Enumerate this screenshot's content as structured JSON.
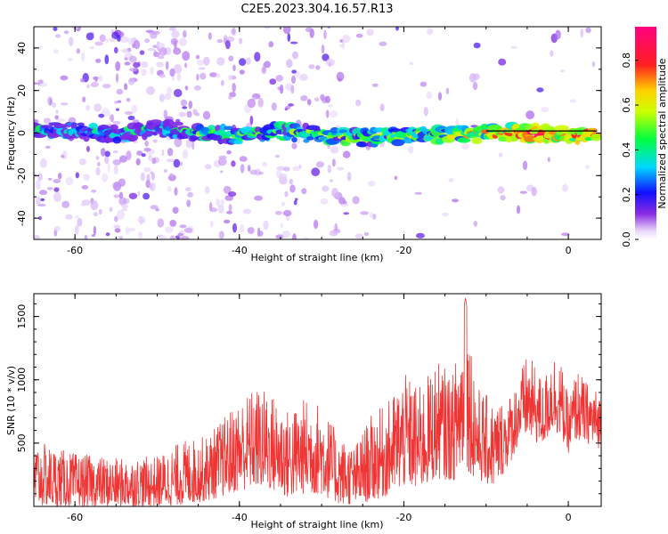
{
  "title": "C2E5.2023.304.16.57.R13",
  "colors": {
    "snr_line": "#ef3434",
    "track_line": "#000000",
    "scatter_low": "#c9a8f5",
    "scatter_high": "#6a00e8"
  },
  "chart_data": [
    {
      "type": "heatmap",
      "xlabel": "Height of straight line (km)",
      "ylabel": "Frequency (Hz)",
      "xlim": [
        -65,
        4
      ],
      "ylim": [
        -50,
        50
      ],
      "xticks": [
        -60,
        -40,
        -20,
        0
      ],
      "yticks": [
        -40,
        -20,
        0,
        20,
        40
      ],
      "grid": false,
      "colorbar": {
        "label": "Normalized spectral amplitude",
        "range": [
          0.0,
          0.95
        ],
        "ticks": [
          "0.0",
          "0.2",
          "0.4",
          "0.6",
          "0.8"
        ],
        "colormap": "rainbow (purple-blue-cyan-green-yellow-red-magenta)"
      },
      "ridge": {
        "description": "main spectral ridge near 0 Hz",
        "x": [
          -65,
          -60,
          -55,
          -50,
          -45,
          -40,
          -35,
          -30,
          -25,
          -20,
          -15,
          -10,
          -5,
          0,
          3
        ],
        "frequency": [
          1,
          1,
          0,
          2,
          0,
          -1,
          1,
          -1,
          -2,
          -1,
          -1,
          0,
          0,
          -1,
          0
        ],
        "amplitude": [
          0.35,
          0.4,
          0.4,
          0.35,
          0.45,
          0.5,
          0.5,
          0.5,
          0.55,
          0.55,
          0.6,
          0.7,
          0.85,
          0.8,
          0.9
        ]
      },
      "track": {
        "x": [
          -10,
          3.5
        ],
        "frequency": [
          1,
          1
        ]
      }
    },
    {
      "type": "line",
      "xlabel": "Height of straight line (km)",
      "ylabel": "SNR (10 * v/v)",
      "xlim": [
        -65,
        4
      ],
      "ylim": [
        0,
        1680
      ],
      "xticks": [
        -60,
        -40,
        -20,
        0
      ],
      "yticks": [
        500,
        1000,
        1500
      ],
      "grid": false,
      "series": [
        {
          "envelope_x": [
            -65,
            -60,
            -55,
            -50,
            -47,
            -44,
            -42,
            -40,
            -38,
            -36,
            -34,
            -32,
            -30,
            -28,
            -26,
            -24,
            -22,
            -20,
            -18,
            -16,
            -14,
            -12.5,
            -11,
            -9,
            -7,
            -6,
            -5,
            -4,
            -3,
            -2,
            -1,
            0,
            1,
            2,
            3,
            4
          ],
          "envelope_hi": [
            520,
            420,
            380,
            400,
            520,
            560,
            700,
            850,
            950,
            900,
            760,
            860,
            820,
            560,
            480,
            720,
            820,
            1050,
            950,
            1150,
            1050,
            1650,
            950,
            820,
            900,
            1050,
            1200,
            1120,
            980,
            1250,
            1180,
            850,
            1100,
            1000,
            950,
            900
          ],
          "envelope_lo": [
            0,
            0,
            0,
            0,
            10,
            40,
            80,
            120,
            150,
            120,
            60,
            100,
            90,
            20,
            10,
            40,
            80,
            150,
            130,
            220,
            200,
            300,
            200,
            150,
            350,
            500,
            550,
            500,
            480,
            600,
            560,
            420,
            520,
            500,
            480,
            450
          ]
        }
      ]
    }
  ]
}
